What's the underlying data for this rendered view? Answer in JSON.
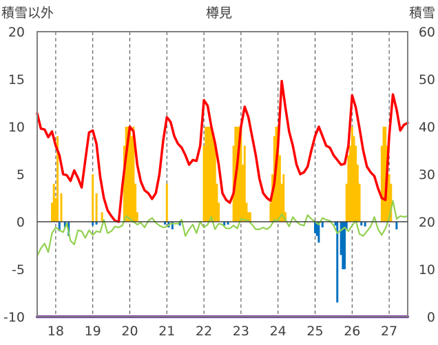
{
  "chart_data": {
    "type": "line",
    "title": "樽見",
    "left_axis_label": "積雪以外",
    "right_axis_label": "積雪",
    "left_ylim": [
      -10,
      20
    ],
    "left_yticks": [
      20,
      15,
      10,
      5,
      0,
      -5,
      -10
    ],
    "left_ytick_labels": [
      "20",
      "15",
      "10",
      "5",
      "0",
      "-5",
      "-10"
    ],
    "right_ylim": [
      0,
      60
    ],
    "right_yticks": [
      60,
      50,
      40,
      30,
      20,
      10,
      0
    ],
    "right_ytick_labels": [
      "60",
      "50",
      "40",
      "30",
      "20",
      "10",
      "0"
    ],
    "x_range": [
      17.5,
      27.5
    ],
    "xticks": [
      18,
      19,
      20,
      21,
      22,
      23,
      24,
      25,
      26,
      27
    ],
    "xtick_labels": [
      "18",
      "19",
      "20",
      "21",
      "22",
      "23",
      "24",
      "25",
      "26",
      "27"
    ],
    "grid": "dashed vertical gridlines at each x tick",
    "colors": {
      "temperature": "#ff0000",
      "humidity": "#92d050",
      "precip": "#ffc000",
      "wind": "#0070c0",
      "snow": "#7030a0",
      "frame": "#808080",
      "zero_line": "#404040"
    },
    "series": [
      {
        "key": "temperature",
        "axis": "left",
        "x": [
          17.5,
          17.6,
          17.7,
          17.8,
          17.9,
          18.0,
          18.1,
          18.2,
          18.3,
          18.4,
          18.5,
          18.6,
          18.7,
          18.8,
          18.9,
          19.0,
          19.1,
          19.2,
          19.3,
          19.4,
          19.5,
          19.6,
          19.7,
          19.8,
          19.9,
          20.0,
          20.1,
          20.2,
          20.3,
          20.4,
          20.5,
          20.6,
          20.7,
          20.8,
          20.9,
          21.0,
          21.1,
          21.2,
          21.3,
          21.4,
          21.5,
          21.6,
          21.7,
          21.8,
          21.9,
          22.0,
          22.1,
          22.2,
          22.3,
          22.4,
          22.5,
          22.6,
          22.7,
          22.8,
          22.9,
          23.0,
          23.1,
          23.2,
          23.3,
          23.4,
          23.5,
          23.6,
          23.7,
          23.8,
          23.9,
          24.0,
          24.1,
          24.2,
          24.3,
          24.4,
          24.5,
          24.6,
          24.7,
          24.8,
          24.9,
          25.0,
          25.1,
          25.2,
          25.3,
          25.4,
          25.5,
          25.6,
          25.7,
          25.8,
          25.9,
          26.0,
          26.1,
          26.2,
          26.3,
          26.4,
          26.5,
          26.6,
          26.7,
          26.8,
          26.9,
          27.0,
          27.1,
          27.2,
          27.3,
          27.4,
          27.5
        ],
        "values": [
          11.4,
          9.8,
          9.7,
          8.9,
          9.5,
          8.0,
          7.0,
          5.0,
          4.9,
          4.3,
          5.4,
          4.6,
          3.6,
          6.5,
          9.4,
          9.6,
          8.2,
          4.7,
          2.5,
          1.2,
          0.6,
          0.1,
          0.0,
          3.8,
          7.0,
          10.0,
          9.5,
          6.0,
          4.2,
          3.3,
          3.0,
          2.4,
          3.0,
          5.0,
          8.5,
          11.0,
          10.5,
          9.0,
          8.2,
          7.8,
          7.0,
          6.0,
          6.5,
          6.4,
          8.0,
          12.8,
          12.2,
          10.0,
          8.3,
          6.0,
          3.0,
          2.3,
          2.0,
          3.0,
          6.0,
          10.0,
          12.1,
          11.0,
          9.0,
          7.0,
          4.5,
          3.0,
          2.5,
          2.2,
          4.0,
          8.0,
          14.8,
          12.0,
          9.5,
          8.0,
          6.0,
          5.0,
          5.2,
          5.8,
          7.5,
          9.0,
          10.0,
          9.0,
          8.0,
          7.8,
          7.0,
          6.5,
          6.0,
          6.1,
          8.0,
          13.3,
          12.0,
          9.8,
          7.5,
          5.8,
          5.2,
          4.8,
          3.5,
          2.5,
          2.3,
          9.0,
          13.4,
          11.8,
          9.6,
          10.2,
          10.4
        ]
      },
      {
        "key": "humidity",
        "axis": "left",
        "x": [
          17.5,
          17.6,
          17.7,
          17.8,
          17.9,
          18.0,
          18.1,
          18.2,
          18.3,
          18.4,
          18.5,
          18.6,
          18.7,
          18.8,
          18.9,
          19.0,
          19.1,
          19.2,
          19.3,
          19.4,
          19.5,
          19.6,
          19.7,
          19.8,
          19.9,
          20.0,
          20.1,
          20.2,
          20.3,
          20.4,
          20.5,
          20.6,
          20.7,
          20.8,
          20.9,
          21.0,
          21.1,
          21.2,
          21.3,
          21.4,
          21.5,
          21.6,
          21.7,
          21.8,
          21.9,
          22.0,
          22.1,
          22.2,
          22.3,
          22.4,
          22.5,
          22.6,
          22.7,
          22.8,
          22.9,
          23.0,
          23.1,
          23.2,
          23.3,
          23.4,
          23.5,
          23.6,
          23.7,
          23.8,
          23.9,
          24.0,
          24.1,
          24.2,
          24.3,
          24.4,
          24.5,
          24.6,
          24.7,
          24.8,
          24.9,
          25.0,
          25.1,
          25.2,
          25.3,
          25.4,
          25.5,
          25.6,
          25.7,
          25.8,
          25.9,
          26.0,
          26.1,
          26.2,
          26.3,
          26.4,
          26.5,
          26.6,
          26.7,
          26.8,
          26.9,
          27.0,
          27.1,
          27.2,
          27.3,
          27.4,
          27.5
        ],
        "values": [
          -3.6,
          -2.8,
          -2.3,
          -3.2,
          -1.2,
          -0.6,
          -0.9,
          -1.1,
          -0.2,
          -2.0,
          -2.4,
          -0.9,
          -1.0,
          -1.7,
          -0.9,
          -1.4,
          -1.0,
          -1.1,
          0.2,
          -1.2,
          -1.0,
          -0.5,
          -0.6,
          -0.4,
          0.6,
          0.3,
          0.0,
          -0.3,
          -0.1,
          -0.6,
          0.1,
          0.4,
          -0.1,
          -0.4,
          -0.6,
          -0.5,
          -0.2,
          -0.2,
          -0.2,
          0.2,
          -1.5,
          -0.8,
          -0.3,
          -1.2,
          0.0,
          -0.6,
          -0.3,
          0.5,
          -0.8,
          -0.2,
          -0.3,
          -0.7,
          -0.7,
          -0.4,
          -0.7,
          0.3,
          0.2,
          0.1,
          -0.3,
          -0.8,
          -0.8,
          -0.6,
          -0.8,
          -0.5,
          0.2,
          0.1,
          0.8,
          0.2,
          -0.5,
          0.5,
          0.0,
          -0.3,
          -0.4,
          0.7,
          0.3,
          0.0,
          -0.3,
          0.4,
          0.2,
          0.1,
          -0.4,
          -1.2,
          -0.9,
          -0.6,
          -1.0,
          -0.4,
          0.1,
          -1.3,
          -1.5,
          -1.0,
          -0.5,
          0.5,
          -0.8,
          -1.4,
          -0.7,
          0.4,
          2.2,
          0.3,
          0.6,
          0.5,
          0.6
        ]
      },
      {
        "key": "snow",
        "axis": "left",
        "x": [
          17.5,
          27.5
        ],
        "values": [
          -10,
          -10
        ]
      }
    ],
    "precip_bars": {
      "axis": "left",
      "color": "#ffc000",
      "x": [
        17.9,
        17.95,
        18.0,
        18.05,
        18.15,
        19.0,
        19.1,
        19.25,
        19.85,
        19.9,
        19.95,
        20.0,
        20.05,
        20.1,
        20.15,
        20.2,
        21.0,
        22.0,
        22.05,
        22.1,
        22.15,
        22.2,
        22.25,
        22.3,
        22.35,
        22.4,
        22.8,
        22.85,
        22.9,
        22.95,
        23.0,
        23.05,
        23.1,
        23.15,
        23.2,
        23.25,
        23.8,
        23.85,
        23.9,
        23.95,
        24.0,
        24.05,
        24.1,
        24.15,
        24.2,
        25.85,
        25.9,
        25.95,
        26.0,
        26.05,
        26.1,
        26.15,
        26.2,
        26.8,
        26.85,
        26.9,
        26.95,
        27.0,
        27.05
      ],
      "values": [
        2.0,
        4.0,
        2.5,
        9.0,
        3.0,
        5.0,
        3.0,
        1.0,
        8.0,
        10.0,
        10.0,
        10.0,
        9.0,
        10.0,
        4.0,
        1.0,
        4.0,
        8.0,
        10.0,
        10.0,
        10.0,
        10.0,
        9.0,
        8.0,
        4.0,
        2.0,
        8.0,
        10.0,
        10.0,
        10.0,
        10.0,
        6.0,
        8.0,
        2.0,
        1.0,
        1.0,
        2.0,
        5.0,
        9.0,
        10.0,
        10.0,
        7.0,
        4.0,
        5.0,
        1.0,
        4.0,
        7.0,
        8.0,
        10.0,
        9.0,
        8.0,
        6.0,
        4.0,
        8.0,
        10.0,
        10.0,
        8.0,
        5.0,
        4.0
      ]
    },
    "wind_bars": {
      "axis": "left",
      "color": "#0070c0",
      "x": [
        18.1,
        18.25,
        18.35,
        19.0,
        19.1,
        20.95,
        21.05,
        21.15,
        21.35,
        22.55,
        22.65,
        25.0,
        25.05,
        25.1,
        25.2,
        25.55,
        25.6,
        25.7,
        25.75,
        25.8,
        25.85,
        26.25,
        26.35,
        27.2
      ],
      "values": [
        -1.0,
        -0.6,
        -1.5,
        -0.4,
        -0.3,
        -0.3,
        -0.6,
        -0.8,
        -0.4,
        -0.4,
        -0.3,
        -1.2,
        -1.5,
        -2.2,
        -0.6,
        -0.4,
        -8.5,
        -3.5,
        -5.0,
        -5.0,
        -0.8,
        -0.4,
        -0.5,
        -0.8
      ]
    }
  }
}
